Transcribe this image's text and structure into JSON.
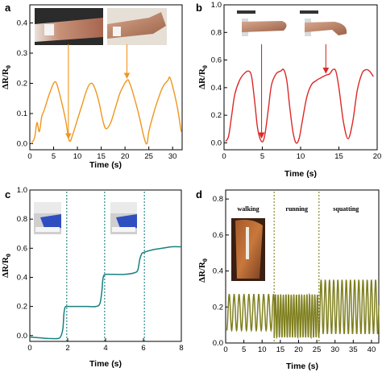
{
  "panels": [
    {
      "label": "a",
      "type": "line",
      "color": "#f0961e",
      "xlabel": "Time (s)",
      "ylabel_main": "ΔR/R",
      "ylabel_sub": "0",
      "xlim": [
        0,
        32
      ],
      "ylim": [
        -0.02,
        0.46
      ],
      "xticks": [
        0,
        5,
        10,
        15,
        20,
        25,
        30
      ],
      "yticks": [
        0.0,
        0.1,
        0.2,
        0.3,
        0.4
      ],
      "ytick_labels": [
        "0.0",
        "0.1",
        "0.2",
        "0.3",
        "0.4"
      ],
      "photos": 2,
      "arrows": [
        {
          "from_x": 8.1,
          "to_x": 8.1,
          "to_y": 0.01
        },
        {
          "from_x": 20.4,
          "to_x": 20.4,
          "to_y": 0.21
        }
      ],
      "vlines": [],
      "annotations": [],
      "chart_data": {
        "type": "line",
        "x": [
          0.3,
          1.0,
          1.5,
          2.0,
          2.5,
          3.0,
          4.0,
          5.0,
          5.6,
          6.5,
          7.5,
          8.3,
          9.0,
          10.0,
          11.0,
          12.0,
          12.8,
          13.5,
          14.5,
          15.3,
          16.0,
          17.0,
          18.0,
          19.0,
          20.4,
          21.0,
          22.0,
          23.0,
          24.0,
          24.6,
          25.0,
          26.0,
          27.0,
          28.0,
          29.0,
          29.4,
          30.0,
          31.0,
          31.8
        ],
        "y": [
          0.0,
          0.02,
          0.07,
          0.04,
          0.09,
          0.11,
          0.16,
          0.2,
          0.2,
          0.15,
          0.08,
          0.01,
          0.03,
          0.08,
          0.13,
          0.18,
          0.2,
          0.19,
          0.14,
          0.08,
          0.05,
          0.07,
          0.12,
          0.17,
          0.21,
          0.2,
          0.15,
          0.09,
          0.02,
          0.0,
          0.04,
          0.1,
          0.15,
          0.19,
          0.21,
          0.22,
          0.19,
          0.12,
          0.04
        ]
      }
    },
    {
      "label": "b",
      "type": "line",
      "color": "#dc2828",
      "xlabel": "Time (s)",
      "ylabel_main": "ΔR/R",
      "ylabel_sub": "0",
      "xlim": [
        0,
        20
      ],
      "ylim": [
        -0.05,
        1.0
      ],
      "xticks": [
        0,
        5,
        10,
        15,
        20
      ],
      "xtick_labels": [
        "0",
        "5",
        "10",
        "15",
        "20"
      ],
      "yticks": [
        0.0,
        0.2,
        0.4,
        0.6,
        0.8,
        1.0
      ],
      "ytick_labels": [
        "0.0",
        "0.2",
        "0.4",
        "0.6",
        "0.8",
        "1.0"
      ],
      "photos": 2,
      "arrows": [
        {
          "from_x": 4.9,
          "to_x": 4.9,
          "to_y": 0.02
        },
        {
          "from_x": 13.3,
          "to_x": 13.3,
          "to_y": 0.49
        }
      ],
      "vlines": [],
      "annotations": [],
      "chart_data": {
        "type": "line",
        "x": [
          0.2,
          0.6,
          1.0,
          1.4,
          2.0,
          2.6,
          3.2,
          3.6,
          4.0,
          4.4,
          4.9,
          5.3,
          5.8,
          6.2,
          6.8,
          7.4,
          7.8,
          8.2,
          8.6,
          9.0,
          9.4,
          9.8,
          10.2,
          10.8,
          11.4,
          12.0,
          12.6,
          13.3,
          13.8,
          14.2,
          14.6,
          15.0,
          15.6,
          16.2,
          16.8,
          17.4,
          18.0,
          18.5,
          19.0,
          19.5
        ],
        "y": [
          0.01,
          0.05,
          0.2,
          0.35,
          0.45,
          0.5,
          0.52,
          0.48,
          0.3,
          0.1,
          0.01,
          0.05,
          0.25,
          0.42,
          0.5,
          0.52,
          0.53,
          0.45,
          0.25,
          0.08,
          0.0,
          0.03,
          0.15,
          0.33,
          0.42,
          0.45,
          0.47,
          0.49,
          0.5,
          0.53,
          0.52,
          0.4,
          0.15,
          0.03,
          0.15,
          0.38,
          0.5,
          0.53,
          0.52,
          0.48
        ]
      }
    },
    {
      "label": "c",
      "type": "line",
      "color": "#1a8080",
      "xlabel": "Time (s)",
      "ylabel_main": "ΔR/R",
      "ylabel_sub": "0",
      "xlim": [
        0,
        8
      ],
      "ylim": [
        -0.04,
        1.0
      ],
      "xticks": [
        0,
        2,
        4,
        6,
        8
      ],
      "yticks": [
        0.0,
        0.2,
        0.4,
        0.6,
        0.8,
        1.0
      ],
      "ytick_labels": [
        "0.0",
        "0.2",
        "0.4",
        "0.6",
        "0.8",
        "1.0"
      ],
      "photos": 2,
      "arrows": [],
      "vlines": [
        1.95,
        3.95,
        6.05
      ],
      "annotations": [],
      "chart_data": {
        "type": "line",
        "x": [
          0,
          0.5,
          1.0,
          1.5,
          1.65,
          1.75,
          1.8,
          1.85,
          1.9,
          2.0,
          2.5,
          3.0,
          3.5,
          3.7,
          3.8,
          3.85,
          3.9,
          4.0,
          4.5,
          5.0,
          5.5,
          5.7,
          5.8,
          5.9,
          6.0,
          6.5,
          7.0,
          7.5,
          8.0
        ],
        "y": [
          -0.01,
          -0.015,
          -0.02,
          -0.02,
          0.0,
          0.05,
          0.15,
          0.19,
          0.2,
          0.2,
          0.2,
          0.2,
          0.2,
          0.22,
          0.3,
          0.38,
          0.41,
          0.42,
          0.42,
          0.42,
          0.43,
          0.45,
          0.52,
          0.56,
          0.57,
          0.59,
          0.6,
          0.61,
          0.61
        ]
      }
    },
    {
      "label": "d",
      "type": "line",
      "color": "#808020",
      "xlabel": "Time (s)",
      "ylabel_main": "ΔR/R",
      "ylabel_sub": "0",
      "xlim": [
        0,
        42
      ],
      "ylim": [
        0.0,
        0.85
      ],
      "xticks": [
        0,
        5,
        10,
        15,
        20,
        25,
        30,
        35,
        40
      ],
      "yticks": [
        0.0,
        0.2,
        0.4,
        0.6,
        0.8
      ],
      "ytick_labels": [
        "0.0",
        "0.2",
        "0.4",
        "0.6",
        "0.8"
      ],
      "photos": 1,
      "arrows": [],
      "vlines": [
        13.3,
        25.6
      ],
      "annotations": [
        {
          "text": "walking",
          "x": 6.2
        },
        {
          "text": "running",
          "x": 19.5
        },
        {
          "text": "squatting",
          "x": 33.0
        }
      ],
      "chart_data": {
        "type": "line",
        "segments": [
          {
            "x_start": 0.3,
            "x_end": 13.3,
            "period": 1.35,
            "low": 0.07,
            "high": 0.27
          },
          {
            "x_start": 13.3,
            "x_end": 25.6,
            "period": 0.72,
            "low": 0.03,
            "high": 0.27
          },
          {
            "x_start": 25.6,
            "x_end": 42.0,
            "period": 1.15,
            "low": 0.05,
            "high": 0.35
          }
        ]
      }
    }
  ]
}
